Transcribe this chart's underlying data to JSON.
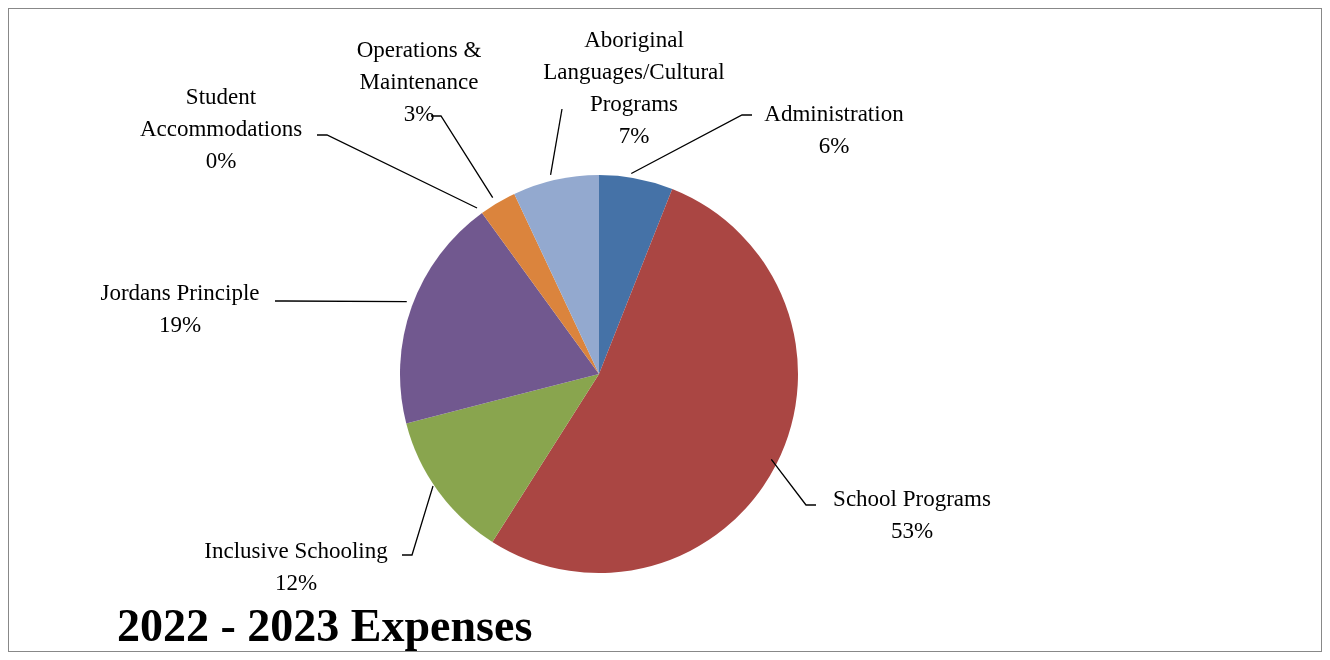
{
  "chart_data": {
    "type": "pie",
    "title": "2022 - 2023 Expenses",
    "categories": [
      "Administration",
      "School Programs",
      "Inclusive Schooling",
      "Jordans Principle",
      "Student Accommodations",
      "Operations & Maintenance",
      "Aboriginal Languages/Cultural Programs"
    ],
    "values": [
      6,
      53,
      12,
      19,
      0,
      3,
      7
    ],
    "value_labels": [
      "6%",
      "53%",
      "12%",
      "19%",
      "0%",
      "3%",
      "7%"
    ],
    "colors": [
      "#4572a7",
      "#aa4643",
      "#89a54e",
      "#71588f",
      "#4198af",
      "#db843d",
      "#93a9cf"
    ]
  }
}
